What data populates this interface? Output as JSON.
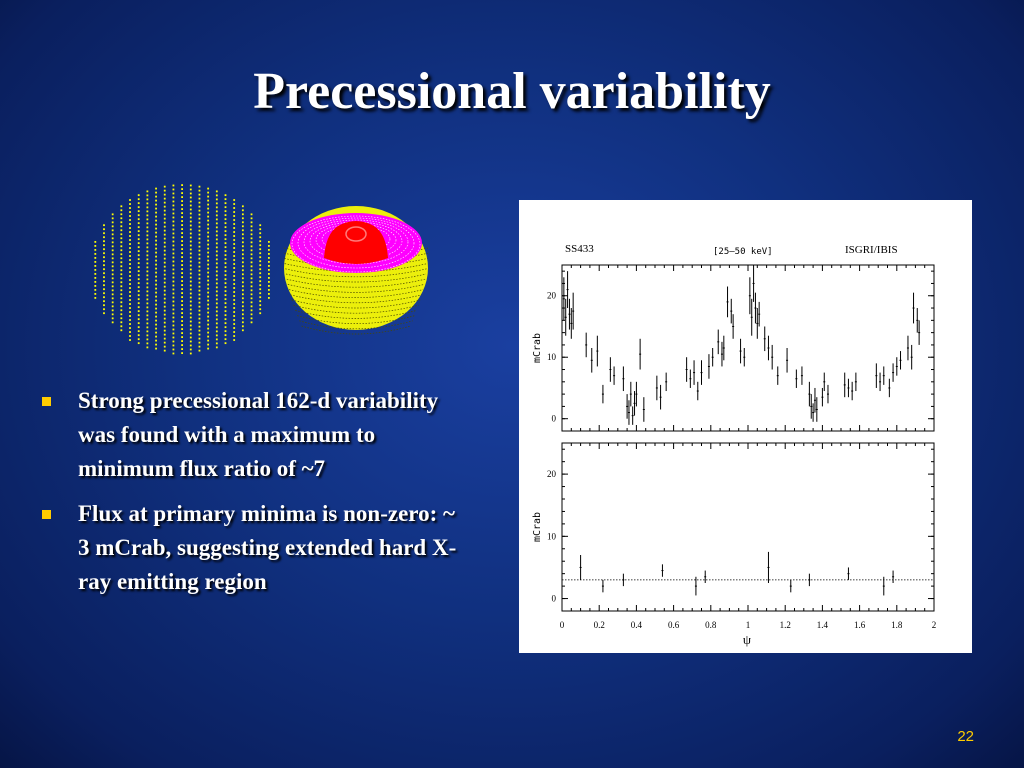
{
  "slide": {
    "title": "Precessional variability",
    "page_number": "22",
    "bullets": [
      {
        "text": "Strong precessional 162-d variability was found with a maximum to minimum flux ratio of  ~7"
      },
      {
        "text": "Flux at primary minima is non-zero: ~ 3 mCrab, suggesting extended hard X-ray emitting region"
      }
    ],
    "colors": {
      "background": "#10307f",
      "title_text": "#ffffff",
      "bullet_marker": "#ffcc00",
      "page_number": "#ffcc00",
      "sphere_dots": "#ffff00",
      "disk_body": "#ffff00",
      "disk_inner": "#ff00ff",
      "disk_core": "#ff0000"
    }
  },
  "chart_data": {
    "type": "scatter",
    "source_label": "SS433",
    "band_label": "[25–50 keV]",
    "instrument_label": "ISGRI/IBIS",
    "xlabel": "ψ",
    "ylabel": "mCrab",
    "xlim": [
      0,
      2
    ],
    "ylim": [
      -2,
      25
    ],
    "x_ticks": [
      "0",
      "0.2",
      "0.4",
      "0.6",
      "0.8",
      "1",
      "1.2",
      "1.4",
      "1.6",
      "1.8",
      "2"
    ],
    "y_ticks": [
      "0",
      "10",
      "20"
    ],
    "panels": [
      {
        "name": "observed",
        "reference_level": null,
        "points": [
          [
            0.01,
            19.5,
            3.5
          ],
          [
            0.02,
            16.5,
            3
          ],
          [
            0.03,
            21,
            3
          ],
          [
            0.04,
            17,
            2.5
          ],
          [
            0.05,
            15.5,
            2.5
          ],
          [
            0.06,
            17.5,
            3
          ],
          [
            0.13,
            12,
            2
          ],
          [
            0.16,
            9.5,
            2
          ],
          [
            0.19,
            11,
            2.5
          ],
          [
            0.22,
            4,
            1.5
          ],
          [
            0.26,
            8,
            2
          ],
          [
            0.28,
            7,
            1.5
          ],
          [
            0.33,
            6.5,
            2
          ],
          [
            0.35,
            2,
            2
          ],
          [
            0.36,
            1,
            2
          ],
          [
            0.37,
            4,
            2
          ],
          [
            0.38,
            0.5,
            1.5
          ],
          [
            0.39,
            2.5,
            2
          ],
          [
            0.4,
            4,
            2
          ],
          [
            0.42,
            10.5,
            2.5
          ],
          [
            0.44,
            1.5,
            2
          ],
          [
            0.51,
            5,
            2
          ],
          [
            0.53,
            3.5,
            2
          ],
          [
            0.56,
            6,
            1.5
          ],
          [
            0.67,
            8,
            2
          ],
          [
            0.69,
            6.5,
            1.5
          ],
          [
            0.71,
            7.5,
            2
          ],
          [
            0.73,
            4.5,
            1.5
          ],
          [
            0.75,
            7.5,
            2
          ],
          [
            0.79,
            8.5,
            2
          ],
          [
            0.81,
            10,
            1.5
          ],
          [
            0.84,
            12.5,
            2
          ],
          [
            0.86,
            10.5,
            2
          ],
          [
            0.87,
            11.5,
            2
          ],
          [
            0.89,
            19,
            2.5
          ],
          [
            0.91,
            17.5,
            2
          ],
          [
            0.92,
            15,
            2
          ],
          [
            0.96,
            11,
            2
          ],
          [
            0.98,
            10,
            1.5
          ],
          [
            1.01,
            20,
            3
          ],
          [
            1.02,
            16.5,
            3
          ],
          [
            1.03,
            22,
            3
          ],
          [
            1.04,
            18,
            2.5
          ],
          [
            1.05,
            15.5,
            2.5
          ],
          [
            1.06,
            17,
            2
          ],
          [
            1.09,
            13,
            2
          ],
          [
            1.11,
            11.5,
            2
          ],
          [
            1.13,
            10,
            2
          ],
          [
            1.16,
            7,
            1.5
          ],
          [
            1.21,
            9.5,
            2
          ],
          [
            1.26,
            6.5,
            1.5
          ],
          [
            1.29,
            7,
            1.5
          ],
          [
            1.33,
            4,
            2
          ],
          [
            1.34,
            2,
            2
          ],
          [
            1.35,
            1,
            1.5
          ],
          [
            1.36,
            3,
            2
          ],
          [
            1.37,
            1.5,
            2
          ],
          [
            1.4,
            3.5,
            1.5
          ],
          [
            1.41,
            6,
            1.5
          ],
          [
            1.43,
            4,
            1.5
          ],
          [
            1.52,
            5.5,
            2
          ],
          [
            1.54,
            5,
            1.5
          ],
          [
            1.56,
            4.5,
            1.5
          ],
          [
            1.58,
            6,
            1.5
          ],
          [
            1.69,
            7,
            2
          ],
          [
            1.71,
            6,
            1.5
          ],
          [
            1.73,
            7,
            1.5
          ],
          [
            1.76,
            5,
            1.5
          ],
          [
            1.78,
            7.5,
            1.5
          ],
          [
            1.8,
            8.5,
            1.5
          ],
          [
            1.82,
            9.5,
            1.5
          ],
          [
            1.86,
            11.5,
            2
          ],
          [
            1.88,
            10,
            2
          ],
          [
            1.89,
            18,
            2.5
          ],
          [
            1.91,
            16,
            2
          ],
          [
            1.92,
            14,
            2
          ]
        ]
      },
      {
        "name": "residual",
        "reference_level": 3,
        "points": [
          [
            0.1,
            5,
            2
          ],
          [
            0.22,
            2,
            1
          ],
          [
            0.33,
            3,
            1
          ],
          [
            0.54,
            4.5,
            1
          ],
          [
            0.72,
            2,
            1.5
          ],
          [
            0.77,
            3.5,
            1
          ],
          [
            1.11,
            5,
            2.5
          ],
          [
            1.23,
            2,
            1
          ],
          [
            1.33,
            3,
            1
          ],
          [
            1.54,
            4,
            1
          ],
          [
            1.73,
            2,
            1.5
          ],
          [
            1.78,
            3.5,
            1
          ]
        ]
      }
    ]
  }
}
